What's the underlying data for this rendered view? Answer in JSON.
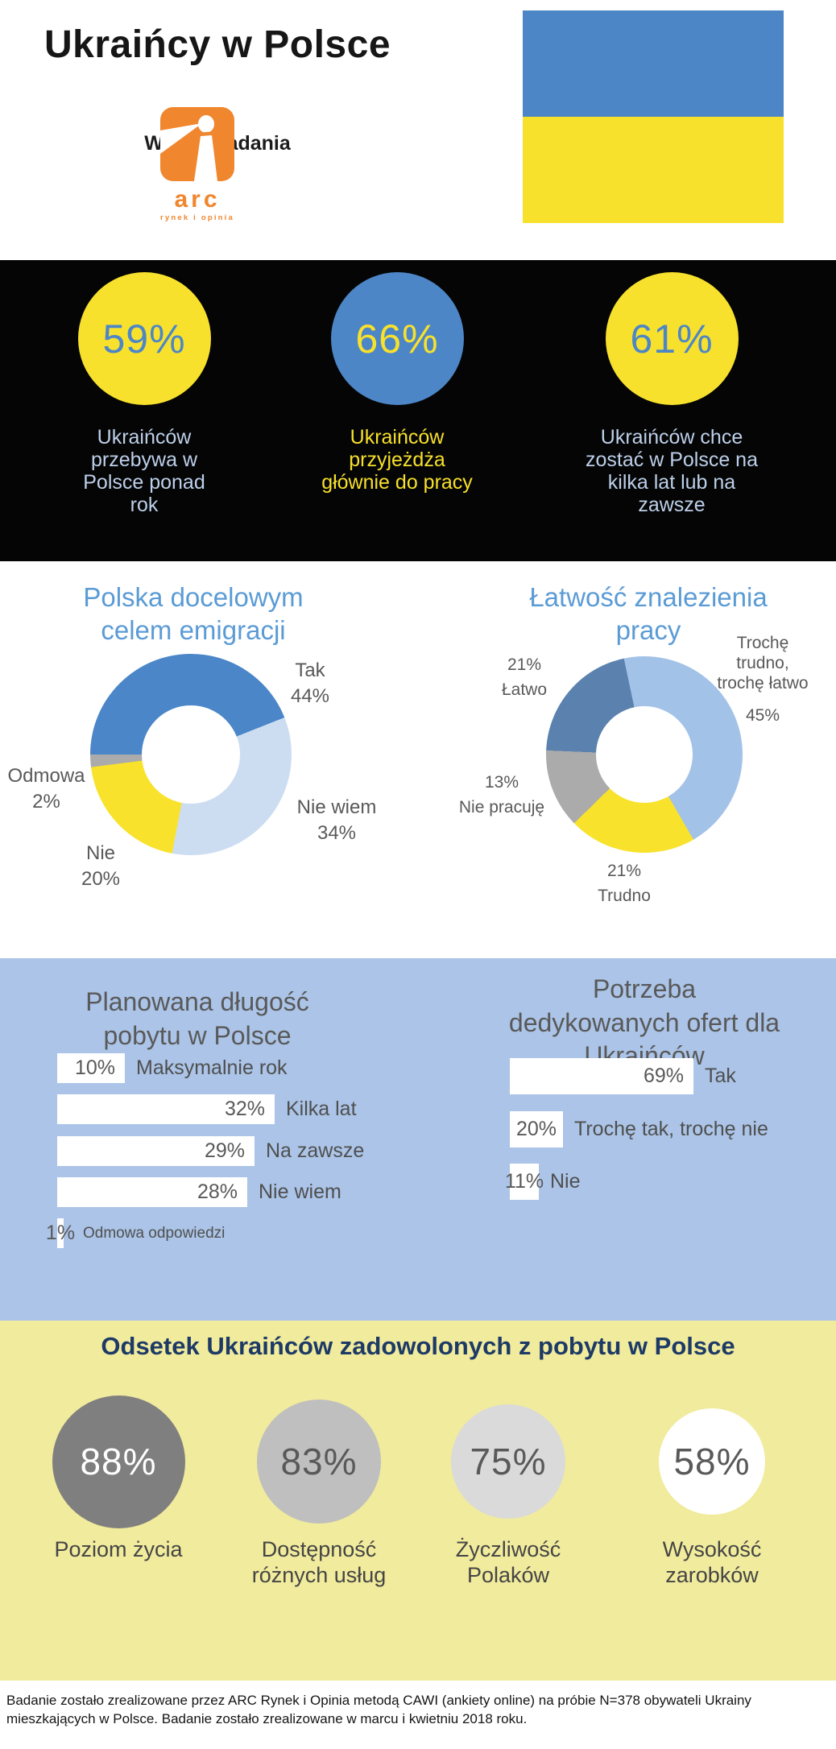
{
  "header": {
    "title": "Ukraińcy w Polsce",
    "subtitle": "Wyniki badania",
    "logo": {
      "text": "arc",
      "tagline": "rynek i opinia",
      "color": "#f0862e"
    },
    "flag": {
      "top_color": "#4d86c6",
      "bottom_color": "#f8e12d"
    }
  },
  "sections": {
    "stats_background": "#050505",
    "bars_background": "#abc4e7",
    "satisfaction_background": "#f1eb9d"
  },
  "key_stats": [
    {
      "value": "59%",
      "caption": "Ukraińców przebywa w Polsce ponad rok",
      "circle_color": "#f8e12d",
      "value_color": "#4d86c6",
      "caption_color": "#bdd0ea"
    },
    {
      "value": "66%",
      "caption": "Ukraińców przyjeżdża głównie do pracy",
      "circle_color": "#4d86c6",
      "value_color": "#f8e12d",
      "caption_color": "#f7e02b"
    },
    {
      "value": "61%",
      "caption": "Ukraińców chce zostać w Polsce na kilka lat lub na zawsze",
      "circle_color": "#f8e12d",
      "value_color": "#4d86c6",
      "caption_color": "#bdd0ea"
    }
  ],
  "chart_data": [
    {
      "type": "donut",
      "title": "Polska docelowym celem emigracji",
      "title_color": "#5b9bd5",
      "start_angle": 270,
      "legend_position": "around",
      "value_labels": "percent",
      "segments": [
        {
          "name": "Tak",
          "value": 44,
          "color": "#4a86c8"
        },
        {
          "name": "Nie wiem",
          "value": 34,
          "color": "#cdddf1"
        },
        {
          "name": "Nie",
          "value": 20,
          "color": "#f8e22b"
        },
        {
          "name": "Odmowa",
          "value": 2,
          "color": "#ababab"
        }
      ]
    },
    {
      "type": "donut",
      "title": "Łatwość znalezienia pracy",
      "title_color": "#5b9bd5",
      "start_angle": 348,
      "legend_position": "around",
      "value_labels": "percent",
      "segments": [
        {
          "name": "Trochę trudno, trochę łatwo",
          "value": 45,
          "color": "#a3c2e8"
        },
        {
          "name": "Trudno",
          "value": 21,
          "color": "#f8e22b"
        },
        {
          "name": "Nie pracuję",
          "value": 13,
          "color": "#ababab"
        },
        {
          "name": "Łatwo",
          "value": 21,
          "color": "#5b82ae"
        }
      ]
    },
    {
      "type": "bar",
      "title": "Planowana długość pobytu w Polsce",
      "title_color": "#595959",
      "orientation": "horizontal",
      "bar_color": "#ffffff",
      "value_labels": "percent",
      "categories": [
        "Maksymalnie rok",
        "Kilka lat",
        "Na zawsze",
        "Nie wiem",
        "Odmowa odpowiedzi"
      ],
      "values": [
        10,
        32,
        29,
        28,
        1
      ],
      "xlim": [
        0,
        35
      ]
    },
    {
      "type": "bar",
      "title": "Potrzeba dedykowanych ofert dla Ukraińców",
      "title_color": "#595959",
      "orientation": "horizontal",
      "bar_color": "#ffffff",
      "value_labels": "percent",
      "categories": [
        "Tak",
        "Trochę tak, trochę nie",
        "Nie"
      ],
      "values": [
        69,
        20,
        11
      ],
      "xlim": [
        0,
        75
      ]
    }
  ],
  "satisfaction": {
    "title": "Odsetek Ukraińców zadowolonych z pobytu w Polsce",
    "title_color": "#1d3a66",
    "items": [
      {
        "value": "88%",
        "label": "Poziom życia",
        "circle_color": "#7f7f7f",
        "value_color": "#ffffff",
        "size": 165
      },
      {
        "value": "83%",
        "label": "Dostępność różnych usług",
        "circle_color": "#bfbfbf",
        "value_color": "#595959",
        "size": 154
      },
      {
        "value": "75%",
        "label": "Życzliwość Polaków",
        "circle_color": "#dadada",
        "value_color": "#595959",
        "size": 142
      },
      {
        "value": "58%",
        "label": "Wysokość zarobków",
        "circle_color": "#ffffff",
        "value_color": "#595959",
        "size": 132
      }
    ]
  },
  "footer": {
    "text": "Badanie zostało zrealizowane przez ARC Rynek i Opinia metodą CAWI (ankiety online) na próbie N=378 obywateli Ukrainy mieszkających w Polsce. Badanie zostało zrealizowane w marcu i kwietniu 2018 roku."
  }
}
